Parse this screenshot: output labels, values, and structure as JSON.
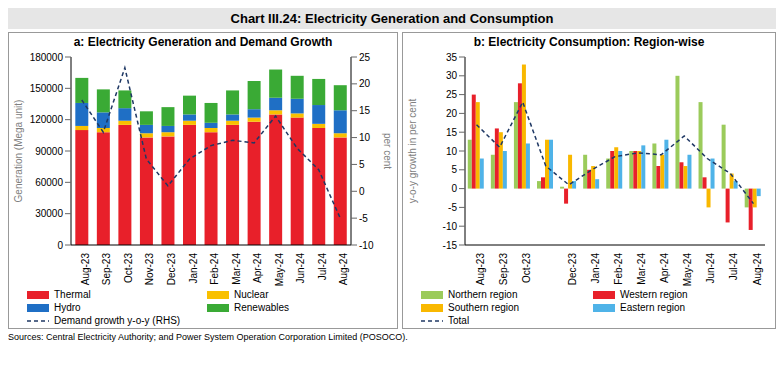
{
  "title": "Chart III.24: Electricity Generation and Consumption",
  "source": "Sources: Central Electricity Authority; and Power System Operation Corporation Limited (POSOCO).",
  "chart_data": [
    {
      "type": "bar",
      "title": "a: Electricity Generation and Demand Growth",
      "stacked": true,
      "grid": false,
      "categories": [
        "Aug-23",
        "Sep-23",
        "Oct-23",
        "Nov-23",
        "Dec-23",
        "Jan-24",
        "Feb-24",
        "Mar-24",
        "Apr-24",
        "May-24",
        "Jun-24",
        "Jul-24",
        "Aug-24"
      ],
      "y_label": "Generation (Mega unit)",
      "y2_label": "per cent",
      "ylim": [
        0,
        180000
      ],
      "yticks": [
        0,
        30000,
        60000,
        90000,
        120000,
        150000,
        180000
      ],
      "y2lim": [
        -10,
        25
      ],
      "y2ticks": [
        -10,
        -5,
        0,
        5,
        10,
        15,
        20,
        25
      ],
      "series": [
        {
          "name": "Thermal",
          "type": "bar",
          "color": "#e8202a",
          "values": [
            110000,
            108000,
            115000,
            103000,
            104000,
            115000,
            108000,
            115000,
            118000,
            125000,
            122000,
            112000,
            103000
          ]
        },
        {
          "name": "Nuclear",
          "type": "bar",
          "color": "#f9c000",
          "values": [
            4000,
            4000,
            4000,
            4000,
            4000,
            4000,
            4000,
            4000,
            4000,
            4000,
            4000,
            4000,
            4000
          ]
        },
        {
          "name": "Hydro",
          "type": "bar",
          "color": "#1f6fc5",
          "values": [
            22000,
            15000,
            12000,
            8000,
            6000,
            6000,
            5000,
            6000,
            8000,
            12000,
            14000,
            18000,
            22000
          ]
        },
        {
          "name": "Renewables",
          "type": "bar",
          "color": "#3aaa35",
          "values": [
            24000,
            22000,
            17000,
            13000,
            18000,
            18000,
            19000,
            23000,
            27000,
            27000,
            22000,
            25000,
            24000
          ]
        },
        {
          "name": "Demand growth y-o-y (RHS)",
          "type": "line",
          "axis": "y2",
          "line_style": "dashed",
          "color": "#1f3864",
          "values": [
            17,
            11,
            23,
            6,
            1,
            6,
            8.5,
            9.5,
            9,
            14,
            8,
            4,
            -5
          ]
        }
      ]
    },
    {
      "type": "bar",
      "title": "b: Electricity Consumption: Region-wise",
      "stacked": false,
      "grid": false,
      "categories": [
        "Aug-23",
        "Sep-23",
        "Oct-23",
        null,
        "Dec-23",
        "Jan-24",
        "Feb-24",
        "Mar-24",
        "Apr-24",
        "May-24",
        "Jun-24",
        "Jul-24",
        "Aug-24"
      ],
      "y_label": "y-o-y growth in per cent",
      "ylim": [
        -15,
        35
      ],
      "yticks": [
        -15,
        -10,
        -5,
        0,
        5,
        10,
        15,
        20,
        25,
        30,
        35
      ],
      "series": [
        {
          "name": "Northern region",
          "type": "bar",
          "color": "#9bcb5b",
          "values": [
            13,
            9,
            23,
            2,
            0.5,
            9,
            8,
            10,
            12,
            30,
            23,
            17,
            -5
          ]
        },
        {
          "name": "Western region",
          "type": "bar",
          "color": "#e8202a",
          "values": [
            25,
            16,
            28,
            3,
            -4,
            5,
            10,
            10,
            6,
            7,
            3,
            -9,
            -11
          ]
        },
        {
          "name": "Southern region",
          "type": "bar",
          "color": "#f9b800",
          "values": [
            23,
            15,
            33,
            13,
            9,
            6,
            11,
            10,
            9,
            6,
            -5,
            4,
            -5
          ]
        },
        {
          "name": "Eastern region",
          "type": "bar",
          "color": "#4fb3e8",
          "values": [
            8,
            10,
            12,
            13,
            2,
            2.5,
            10,
            11.5,
            13,
            9,
            8,
            2,
            -2
          ]
        },
        {
          "name": "Total",
          "type": "line",
          "line_style": "dashed",
          "color": "#1f3864",
          "values": [
            17,
            11,
            23,
            6,
            1,
            5,
            8.5,
            9.5,
            9,
            14,
            8,
            4,
            -4
          ]
        }
      ]
    }
  ]
}
